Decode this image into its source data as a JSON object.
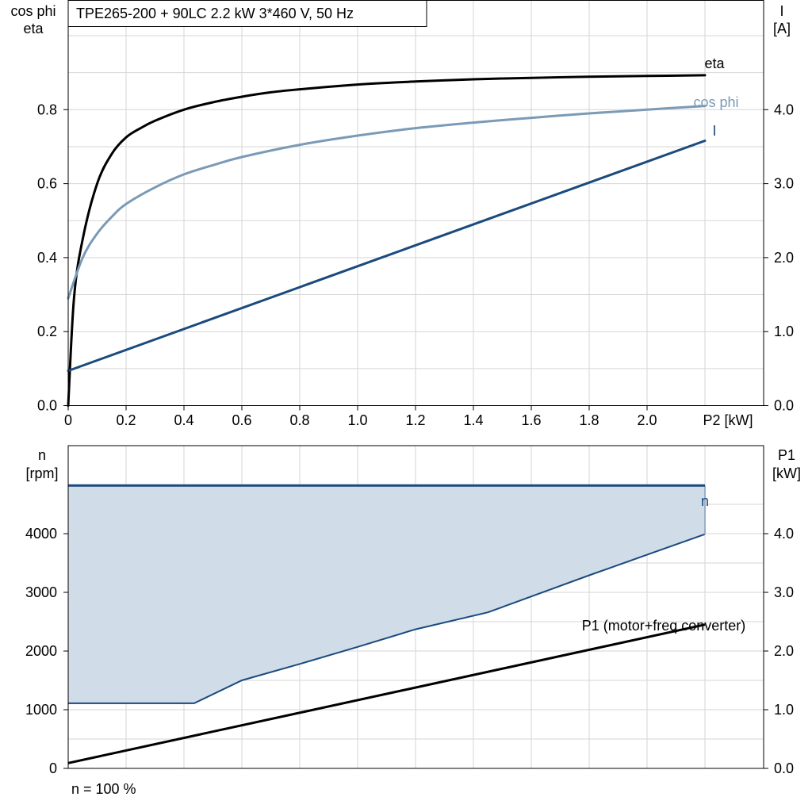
{
  "chart_data": [
    {
      "type": "line",
      "title": "TPE265-200 + 90LC   2.2 kW   3*460 V, 50 Hz",
      "xlabel": "P2 [kW]",
      "ylabel_left": [
        "cos phi",
        "eta"
      ],
      "ylabel_right": [
        "I",
        "[A]"
      ],
      "xlim": [
        0,
        2.2
      ],
      "ylim_left": [
        0,
        1.0
      ],
      "ylim_right": [
        0,
        5.0
      ],
      "x_ticks": [
        {
          "value": 0,
          "label": "0"
        },
        {
          "value": 0.2,
          "label": "0.2"
        },
        {
          "value": 0.4,
          "label": "0.4"
        },
        {
          "value": 0.6,
          "label": "0.6"
        },
        {
          "value": 0.8,
          "label": "0.8"
        },
        {
          "value": 1.0,
          "label": "1.0"
        },
        {
          "value": 1.2,
          "label": "1.2"
        },
        {
          "value": 1.4,
          "label": "1.4"
        },
        {
          "value": 1.6,
          "label": "1.6"
        },
        {
          "value": 1.8,
          "label": "1.8"
        },
        {
          "value": 2.0,
          "label": "2.0"
        }
      ],
      "left_ticks": [
        {
          "value": 0,
          "label": "0.0"
        },
        {
          "value": 0.2,
          "label": "0.2"
        },
        {
          "value": 0.4,
          "label": "0.4"
        },
        {
          "value": 0.6,
          "label": "0.6"
        },
        {
          "value": 0.8,
          "label": "0.8"
        }
      ],
      "right_ticks": [
        {
          "value": 0,
          "label": "0.0"
        },
        {
          "value": 1.0,
          "label": "1.0"
        },
        {
          "value": 2.0,
          "label": "2.0"
        },
        {
          "value": 3.0,
          "label": "3.0"
        },
        {
          "value": 4.0,
          "label": "4.0"
        }
      ],
      "grid": true,
      "series": [
        {
          "name": "eta",
          "axis": "left",
          "color": "#000000",
          "x": [
            0,
            0.02,
            0.05,
            0.1,
            0.15,
            0.2,
            0.25,
            0.3,
            0.4,
            0.5,
            0.6,
            0.7,
            0.8,
            1.0,
            1.2,
            1.4,
            1.6,
            1.8,
            2.0,
            2.2
          ],
          "y": [
            0.0,
            0.29,
            0.45,
            0.6,
            0.68,
            0.725,
            0.75,
            0.77,
            0.8,
            0.82,
            0.835,
            0.847,
            0.855,
            0.868,
            0.876,
            0.882,
            0.886,
            0.889,
            0.891,
            0.893
          ]
        },
        {
          "name": "cos phi",
          "axis": "left",
          "color": "#7a9ab6",
          "x": [
            0,
            0.05,
            0.1,
            0.15,
            0.2,
            0.3,
            0.4,
            0.5,
            0.6,
            0.8,
            1.0,
            1.2,
            1.4,
            1.6,
            1.8,
            2.0,
            2.2
          ],
          "y": [
            0.29,
            0.4,
            0.465,
            0.51,
            0.545,
            0.59,
            0.625,
            0.65,
            0.672,
            0.705,
            0.73,
            0.75,
            0.765,
            0.778,
            0.79,
            0.8,
            0.81
          ]
        },
        {
          "name": "I",
          "axis": "right",
          "color": "#1a4a7e",
          "x": [
            0,
            2.2
          ],
          "y": [
            0.47,
            3.58
          ]
        }
      ]
    },
    {
      "type": "area",
      "xlabel": "",
      "ylabel_left": [
        "n",
        "[rpm]"
      ],
      "ylabel_right": [
        "P1",
        "[kW]"
      ],
      "xlim": [
        0,
        2.2
      ],
      "ylim_left": [
        0,
        5000
      ],
      "ylim_right": [
        0,
        5.0
      ],
      "left_ticks": [
        {
          "value": 0,
          "label": "0"
        },
        {
          "value": 1000,
          "label": "1000"
        },
        {
          "value": 2000,
          "label": "2000"
        },
        {
          "value": 3000,
          "label": "3000"
        },
        {
          "value": 4000,
          "label": "4000"
        }
      ],
      "right_ticks": [
        {
          "value": 0,
          "label": "0.0"
        },
        {
          "value": 1.0,
          "label": "1.0"
        },
        {
          "value": 2.0,
          "label": "2.0"
        },
        {
          "value": 3.0,
          "label": "3.0"
        },
        {
          "value": 4.0,
          "label": "4.0"
        }
      ],
      "grid": true,
      "region": {
        "fill_color": "#d0dce8",
        "edge_color": "#1a4a7e",
        "upper": {
          "x": [
            0,
            2.2
          ],
          "y": [
            4820,
            4820
          ]
        },
        "lower": {
          "x": [
            0,
            0.435,
            0.6,
            0.8,
            1.0,
            1.2,
            1.45,
            1.6,
            1.8,
            2.0,
            2.2
          ],
          "y": [
            1110,
            1110,
            1500,
            1780,
            2070,
            2370,
            2660,
            2930,
            3290,
            3640,
            3990
          ]
        }
      },
      "series": [
        {
          "name": "n",
          "axis": "left",
          "color": "#1a4a7e",
          "x": [
            0,
            2.2
          ],
          "y": [
            4820,
            4820
          ]
        },
        {
          "name": "P1 (motor+freq converter)",
          "axis": "right",
          "color": "#000000",
          "x": [
            0,
            2.2
          ],
          "y": [
            0.09,
            2.45
          ]
        }
      ],
      "footnote": "n = 100 %"
    }
  ]
}
